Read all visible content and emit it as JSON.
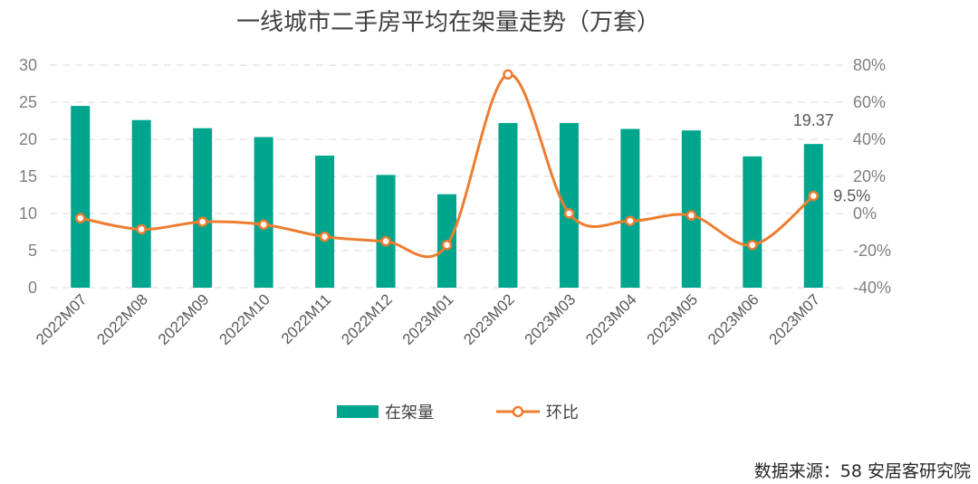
{
  "chart_data": {
    "type": "bar+line",
    "title": "一线城市二手房平均在架量走势（万套）",
    "categories": [
      "2022M07",
      "2022M08",
      "2022M09",
      "2022M10",
      "2022M11",
      "2022M12",
      "2023M01",
      "2023M02",
      "2023M03",
      "2023M04",
      "2023M05",
      "2023M06",
      "2023M07"
    ],
    "series": [
      {
        "name": "在架量",
        "type": "bar",
        "axis": "left",
        "color": "#00a58e",
        "values": [
          24.5,
          22.6,
          21.5,
          20.3,
          17.8,
          15.2,
          12.6,
          22.2,
          22.2,
          21.4,
          21.2,
          17.7,
          19.37
        ]
      },
      {
        "name": "环比",
        "type": "line",
        "axis": "right",
        "color": "#ed7d31",
        "unit": "%",
        "values": [
          -2.5,
          -8.5,
          -4.5,
          -6.0,
          -12.5,
          -15.0,
          -17.0,
          75.0,
          0.0,
          -4.0,
          -1.0,
          -17.0,
          9.5
        ]
      }
    ],
    "y_left": {
      "min": 0,
      "max": 30,
      "ticks": [
        "0",
        "5",
        "10",
        "15",
        "20",
        "25",
        "30"
      ]
    },
    "y_right": {
      "min": -40,
      "max": 80,
      "ticks": [
        "-40%",
        "-20%",
        "0%",
        "20%",
        "40%",
        "60%",
        "80%"
      ]
    },
    "data_labels": {
      "bar_last": "19.37",
      "line_last": "9.5%"
    },
    "grid": true,
    "legend_position": "bottom"
  },
  "source_text": "数据来源：58 安居客研究院"
}
